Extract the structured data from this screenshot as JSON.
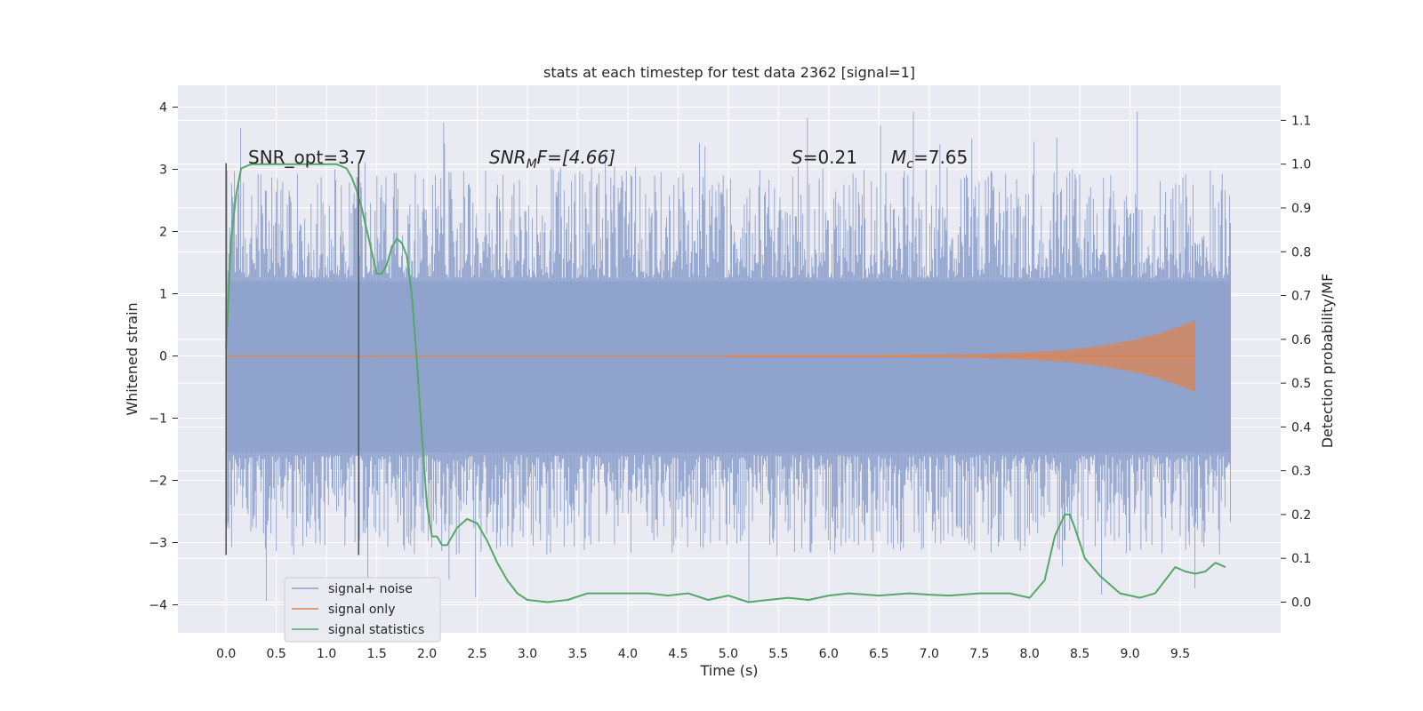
{
  "chart_data": {
    "type": "line",
    "title": "stats at each timestep for test data 2362 [signal=1]",
    "xlabel": "Time (s)",
    "ylabel": "Whitened strain",
    "y2label": "Detection probability/MF",
    "xlim": [
      -0.48,
      10.5
    ],
    "ylim": [
      -4.45,
      4.35
    ],
    "y2lim": [
      -0.07,
      1.18
    ],
    "x_ticks": [
      "0.0",
      "0.5",
      "1.0",
      "1.5",
      "2.0",
      "2.5",
      "3.0",
      "3.5",
      "4.0",
      "4.5",
      "5.0",
      "5.5",
      "6.0",
      "6.5",
      "7.0",
      "7.5",
      "8.0",
      "8.5",
      "9.0",
      "9.5"
    ],
    "y_ticks": [
      "−4",
      "−3",
      "−2",
      "−1",
      "0",
      "1",
      "2",
      "3",
      "4"
    ],
    "y2_ticks": [
      "0.0",
      "0.1",
      "0.2",
      "0.3",
      "0.4",
      "0.5",
      "0.6",
      "0.7",
      "0.8",
      "0.9",
      "1.0",
      "1.1"
    ],
    "grid": true,
    "legend_position": "lower-left",
    "colors": {
      "background": "#eaeaf2",
      "grid": "#ffffff",
      "noise": "#8ea2cc",
      "signal": "#dd8452",
      "stats": "#55a868",
      "vline": "#555555"
    },
    "annotations": {
      "snr_opt": "SNR_opt=3.7",
      "snr_mf_italic": "SNR",
      "snr_mf_sub": "M",
      "snr_mf_rest": "F=[4.66]",
      "s_sym": "S",
      "s_val": "=0.21",
      "mc_sym": "M",
      "mc_sub": "c",
      "mc_val": "=7.65"
    },
    "vertical_lines": [
      {
        "x": 0.0,
        "ymin": -3.2,
        "ymax": 3.1
      },
      {
        "x": 1.32,
        "ymin": -3.2,
        "ymax": 3.1
      }
    ],
    "noise_envelope": {
      "x_start": 0.0,
      "x_end": 10.0,
      "band_low": -1.55,
      "band_high": 1.2,
      "spike_max": 3.95,
      "spike_min": -4.1
    },
    "series": [
      {
        "name": "signal+ noise",
        "kind": "noise",
        "color": "#8ea2cc"
      },
      {
        "name": "signal only",
        "kind": "chirp",
        "color": "#dd8452",
        "x_start": 5.0,
        "x_end": 9.65,
        "amp_start": 0.02,
        "amp_end": 0.58
      },
      {
        "name": "signal statistics",
        "kind": "secondary",
        "color": "#55a868",
        "x": [
          0.0,
          0.05,
          0.1,
          0.15,
          0.25,
          0.4,
          0.6,
          0.8,
          1.0,
          1.1,
          1.2,
          1.25,
          1.3,
          1.35,
          1.4,
          1.45,
          1.5,
          1.55,
          1.6,
          1.65,
          1.7,
          1.75,
          1.8,
          1.85,
          1.9,
          1.95,
          2.0,
          2.05,
          2.1,
          2.15,
          2.2,
          2.25,
          2.3,
          2.4,
          2.5,
          2.6,
          2.7,
          2.8,
          2.9,
          3.0,
          3.2,
          3.4,
          3.6,
          3.8,
          4.0,
          4.2,
          4.4,
          4.6,
          4.8,
          5.0,
          5.2,
          5.4,
          5.6,
          5.8,
          6.0,
          6.2,
          6.5,
          6.8,
          7.0,
          7.2,
          7.5,
          7.8,
          8.0,
          8.15,
          8.25,
          8.35,
          8.4,
          8.45,
          8.55,
          8.7,
          8.9,
          9.1,
          9.25,
          9.35,
          9.45,
          9.55,
          9.65,
          9.75,
          9.85,
          9.95
        ],
        "values": [
          0.58,
          0.83,
          0.93,
          0.99,
          1.0,
          1.0,
          1.0,
          1.0,
          1.0,
          1.0,
          0.99,
          0.97,
          0.94,
          0.9,
          0.85,
          0.8,
          0.75,
          0.75,
          0.77,
          0.81,
          0.83,
          0.82,
          0.79,
          0.7,
          0.55,
          0.38,
          0.22,
          0.15,
          0.15,
          0.13,
          0.13,
          0.15,
          0.17,
          0.19,
          0.18,
          0.14,
          0.09,
          0.05,
          0.02,
          0.005,
          0.0,
          0.005,
          0.02,
          0.02,
          0.02,
          0.02,
          0.015,
          0.02,
          0.005,
          0.015,
          0.0,
          0.005,
          0.01,
          0.005,
          0.015,
          0.02,
          0.015,
          0.02,
          0.017,
          0.015,
          0.02,
          0.02,
          0.01,
          0.05,
          0.15,
          0.2,
          0.2,
          0.17,
          0.1,
          0.06,
          0.02,
          0.01,
          0.02,
          0.05,
          0.08,
          0.07,
          0.065,
          0.07,
          0.09,
          0.08
        ]
      }
    ]
  }
}
